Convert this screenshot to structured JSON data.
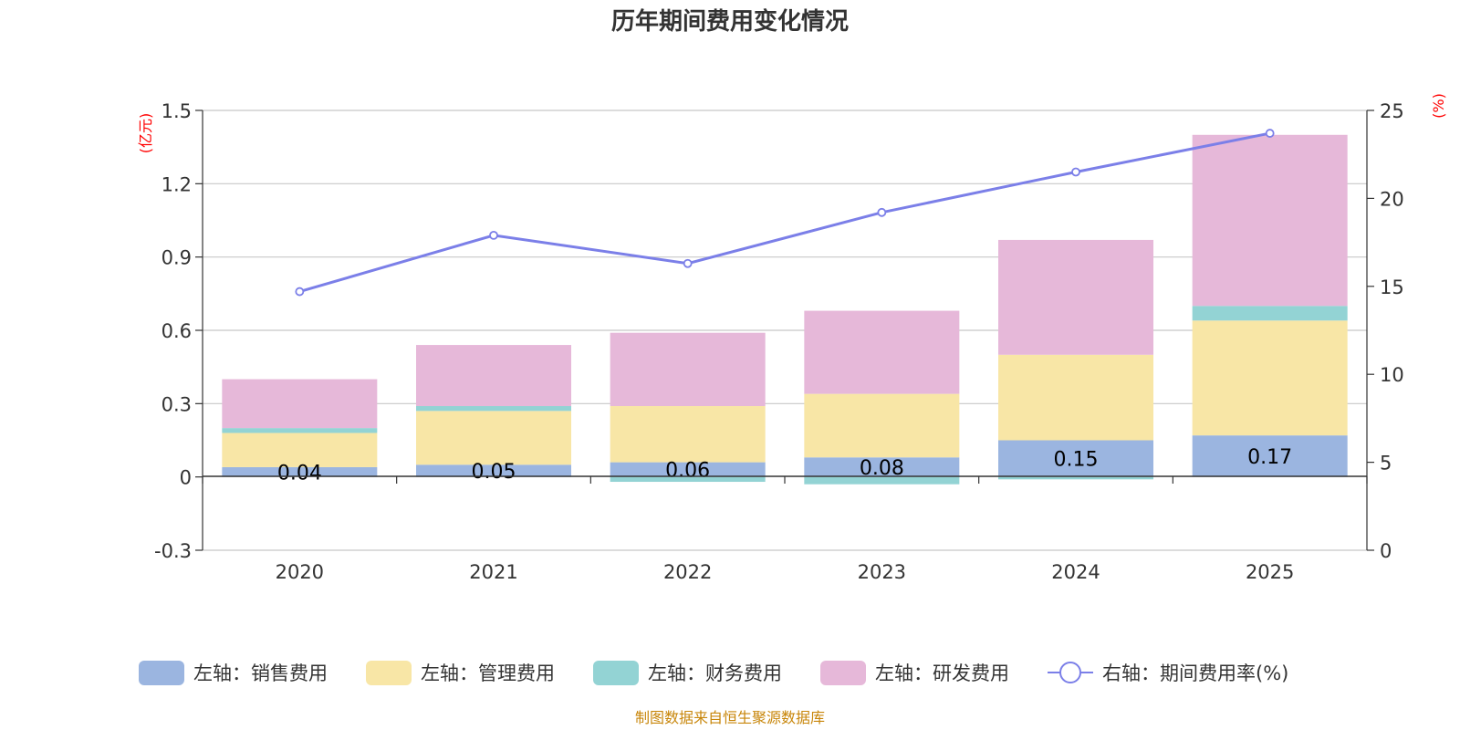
{
  "colors": {
    "sales": "#9bb5e0",
    "admin": "#f8e6a6",
    "finance": "#93d3d4",
    "rnd": "#e6b8d9",
    "rate": "#7b7fe8",
    "unit": "#ff0000",
    "source": "#c8860a"
  },
  "chart_data": {
    "type": "bar",
    "stacked": true,
    "title": "历年期间费用变化情况",
    "categories": [
      "2020",
      "2021",
      "2022",
      "2023",
      "2024",
      "2025"
    ],
    "y_left": {
      "label": "(亿元)",
      "ylim": [
        -0.3,
        1.5
      ],
      "ticks": [
        -0.3,
        0,
        0.3,
        0.6,
        0.9,
        1.2,
        1.5
      ],
      "tick_labels": [
        "-0.3",
        "0",
        "0.3",
        "0.6",
        "0.9",
        "1.2",
        "1.5"
      ]
    },
    "y_right": {
      "label": "(%)",
      "ylim": [
        0,
        25
      ],
      "ticks": [
        0,
        5,
        10,
        15,
        20,
        25
      ],
      "tick_labels": [
        "0",
        "5",
        "10",
        "15",
        "20",
        "25"
      ]
    },
    "series": [
      {
        "key": "sales",
        "name": "左轴：销售费用",
        "type": "bar",
        "axis": "left",
        "values": [
          0.04,
          0.05,
          0.06,
          0.08,
          0.15,
          0.17
        ],
        "labels": [
          "0.04",
          "0.05",
          "0.06",
          "0.08",
          "0.15",
          "0.17"
        ]
      },
      {
        "key": "admin",
        "name": "左轴：管理费用",
        "type": "bar",
        "axis": "left",
        "values": [
          0.14,
          0.22,
          0.23,
          0.26,
          0.35,
          0.47
        ]
      },
      {
        "key": "finance",
        "name": "左轴：财务费用",
        "type": "bar",
        "axis": "left",
        "values": [
          0.02,
          0.02,
          -0.02,
          -0.03,
          -0.01,
          0.06
        ]
      },
      {
        "key": "rnd",
        "name": "左轴：研发费用",
        "type": "bar",
        "axis": "left",
        "values": [
          0.2,
          0.25,
          0.3,
          0.34,
          0.47,
          0.7
        ]
      },
      {
        "key": "rate",
        "name": "右轴：期间费用率(%)",
        "type": "line",
        "axis": "right",
        "values": [
          14.7,
          17.9,
          16.3,
          19.2,
          21.5,
          23.7
        ]
      }
    ],
    "legend_position": "bottom",
    "grid": true
  },
  "source": "制图数据来自恒生聚源数据库"
}
